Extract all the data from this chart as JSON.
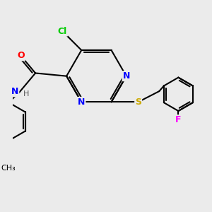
{
  "bg_color": "#ebebeb",
  "bond_color": "#000000",
  "bond_width": 1.5,
  "atom_colors": {
    "N": "#0000ff",
    "O": "#ff0000",
    "S": "#ccaa00",
    "Cl": "#00cc00",
    "F": "#ff00ff",
    "H": "#555555",
    "C": "#000000"
  },
  "font_size": 9,
  "font_size_small": 8
}
